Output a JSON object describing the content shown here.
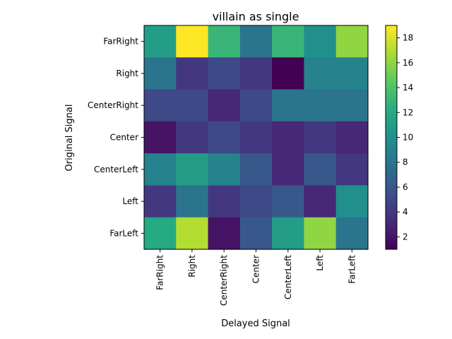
{
  "chart_data": {
    "type": "heatmap",
    "title": "villain as single",
    "xlabel": "Delayed Signal",
    "ylabel": "Original Signal",
    "x_categories": [
      "FarRight",
      "Right",
      "CenterRight",
      "Center",
      "CenterLeft",
      "Left",
      "FarLeft"
    ],
    "y_categories": [
      "FarRight",
      "Right",
      "CenterRight",
      "Center",
      "CenterLeft",
      "Left",
      "FarLeft"
    ],
    "values": [
      [
        11,
        19,
        13,
        8,
        13,
        10,
        16
      ],
      [
        8,
        4,
        5,
        4,
        1,
        9,
        9
      ],
      [
        5,
        5,
        3,
        5,
        8,
        8,
        8
      ],
      [
        2,
        4,
        5,
        4,
        3,
        4,
        3
      ],
      [
        9,
        11,
        9,
        6,
        3,
        6,
        4
      ],
      [
        4,
        8,
        4,
        5,
        6,
        3,
        10
      ],
      [
        12,
        17,
        2,
        6,
        11,
        16,
        8
      ]
    ],
    "colormap": "viridis",
    "vmin": 1,
    "vmax": 19,
    "colorbar_ticks": [
      2,
      4,
      6,
      8,
      10,
      12,
      14,
      16,
      18
    ]
  }
}
